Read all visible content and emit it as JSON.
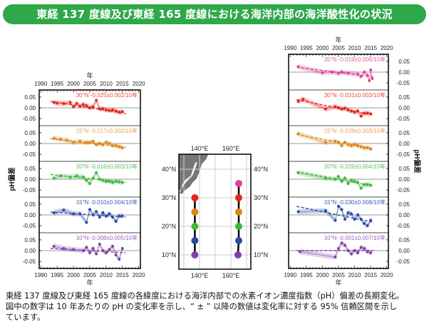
{
  "title": "東経 137 度線及び東経 165 度線における海洋内部の海洋酸性化の状況",
  "caption": [
    "東経 137 度線及び東経 165 度線の各緯度における海洋内部での水素イオン濃度指数（pH）偏差の長期変化。",
    "図中の数字は 10 年あたりの pH の変化率を示し、“ ± ” 以降の数値は変化率に対する 95% 信頼区間を示し",
    "ています。"
  ],
  "chart_data": [
    {
      "type": "line",
      "xlabel": "年",
      "ylabel": "pH偏差",
      "xlim": [
        1989.5,
        2020.5
      ],
      "ylim": [
        -0.083,
        0.083
      ],
      "xticks": [
        "1990",
        "1995",
        "2000",
        "2005",
        "2010",
        "2015",
        "2020"
      ],
      "yticks": [
        "0.05",
        "0.00",
        "-0.05"
      ],
      "grid": false,
      "panels": [
        {
          "label": "30°N -0.025±0.002/10年",
          "latitude": 30,
          "color": "#e8241c",
          "label_color": "#ef4a3a",
          "trend": [
            [
              1993,
              0.03
            ],
            [
              2016,
              -0.027
            ]
          ],
          "points": [
            [
              1994,
              0.025
            ],
            [
              1995,
              0.022
            ],
            [
              1997,
              0.02
            ],
            [
              1999,
              0.025
            ],
            [
              2000,
              0.005
            ],
            [
              2001,
              0.02
            ],
            [
              2002,
              0.008
            ],
            [
              2003,
              0.015
            ],
            [
              2004,
              0.01
            ],
            [
              2005,
              0.0
            ],
            [
              2006,
              0.005
            ],
            [
              2007,
              0.035
            ],
            [
              2008,
              -0.005
            ],
            [
              2009,
              -0.005
            ],
            [
              2010,
              -0.01
            ],
            [
              2011,
              -0.012
            ],
            [
              2012,
              -0.01
            ],
            [
              2013,
              -0.015
            ],
            [
              2014,
              -0.02
            ],
            [
              2015,
              -0.018
            ]
          ]
        },
        {
          "label": "25°N -0.017±0.002/10年",
          "latitude": 25,
          "color": "#dd8613",
          "label_color": "#e8a050",
          "trend": [
            [
              1993,
              0.022
            ],
            [
              2016,
              -0.018
            ]
          ],
          "points": [
            [
              1994,
              0.025
            ],
            [
              1996,
              0.02
            ],
            [
              1998,
              0.015
            ],
            [
              2000,
              0.005
            ],
            [
              2002,
              0.01
            ],
            [
              2004,
              0.005
            ],
            [
              2005,
              0.005
            ],
            [
              2006,
              0.01
            ],
            [
              2007,
              -0.005
            ],
            [
              2008,
              0.0
            ],
            [
              2009,
              -0.005
            ],
            [
              2010,
              0.005
            ],
            [
              2011,
              0.0
            ],
            [
              2012,
              -0.01
            ],
            [
              2013,
              -0.01
            ],
            [
              2014,
              -0.015
            ],
            [
              2015,
              -0.02
            ]
          ]
        },
        {
          "label": "20°N -0.016±0.003/10年",
          "latitude": 20,
          "color": "#3cb83c",
          "label_color": "#5cc05c",
          "trend": [
            [
              1993,
              0.022
            ],
            [
              2016,
              -0.015
            ]
          ],
          "points": [
            [
              1994,
              0.005
            ],
            [
              1996,
              0.015
            ],
            [
              1999,
              0.01
            ],
            [
              2001,
              0.015
            ],
            [
              2003,
              0.01
            ],
            [
              2004,
              -0.005
            ],
            [
              2005,
              -0.02
            ],
            [
              2006,
              0.005
            ],
            [
              2007,
              0.03
            ],
            [
              2008,
              0.0
            ],
            [
              2009,
              -0.005
            ],
            [
              2010,
              -0.01
            ],
            [
              2011,
              -0.01
            ],
            [
              2012,
              -0.015
            ],
            [
              2013,
              -0.01
            ],
            [
              2014,
              -0.012
            ],
            [
              2015,
              -0.015
            ]
          ]
        },
        {
          "label": "15°N -0.010±0.004/10年",
          "latitude": 15,
          "color": "#2a4aa8",
          "label_color": "#3a5ab8",
          "trend": [
            [
              1993,
              0.013
            ],
            [
              2016,
              -0.01
            ]
          ],
          "points": [
            [
              1994,
              0.01
            ],
            [
              1997,
              0.022
            ],
            [
              2000,
              0.005
            ],
            [
              2002,
              0.005
            ],
            [
              2004,
              -0.035
            ],
            [
              2005,
              0.025
            ],
            [
              2006,
              0.0
            ],
            [
              2007,
              0.015
            ],
            [
              2008,
              -0.01
            ],
            [
              2009,
              0.01
            ],
            [
              2010,
              -0.005
            ],
            [
              2011,
              0.005
            ],
            [
              2012,
              -0.01
            ],
            [
              2013,
              -0.03
            ],
            [
              2014,
              -0.005
            ],
            [
              2015,
              -0.005
            ]
          ]
        },
        {
          "label": "10°N -0.008±0.005/10年",
          "latitude": 10,
          "color": "#8040a8",
          "label_color": "#9a60c0",
          "trend": [
            [
              1993,
              0.01
            ],
            [
              2016,
              -0.01
            ]
          ],
          "points": [
            [
              1994,
              0.02
            ],
            [
              1997,
              0.01
            ],
            [
              2000,
              0.005
            ],
            [
              2003,
              0.0
            ],
            [
              2004,
              0.015
            ],
            [
              2005,
              -0.01
            ],
            [
              2006,
              0.01
            ],
            [
              2007,
              -0.015
            ],
            [
              2008,
              0.03
            ],
            [
              2009,
              0.0
            ],
            [
              2010,
              -0.01
            ],
            [
              2011,
              0.005
            ],
            [
              2012,
              0.02
            ],
            [
              2013,
              -0.02
            ],
            [
              2014,
              -0.04
            ],
            [
              2015,
              0.01
            ]
          ]
        }
      ]
    },
    {
      "type": "line",
      "xlabel": "年",
      "ylabel": "pH偏差",
      "xlim": [
        1989.5,
        2020.5
      ],
      "ylim": [
        -0.083,
        0.083
      ],
      "xticks": [
        "1990",
        "1995",
        "2000",
        "2005",
        "2010",
        "2015",
        "2020"
      ],
      "yticks": [
        "0.05",
        "0.00",
        "-0.05"
      ],
      "grid": false,
      "panels": [
        {
          "label": "35°N -0.019±0.006/10年",
          "latitude": 35,
          "color": "#e0409a",
          "label_color": "#e060a8",
          "trend": [
            [
              1992,
              0.023
            ],
            [
              2016,
              -0.022
            ]
          ],
          "points": [
            [
              1992.5,
              0.025
            ],
            [
              2000,
              -0.002
            ],
            [
              2003,
              0.0
            ],
            [
              2005,
              -0.005
            ],
            [
              2006,
              0.0
            ],
            [
              2008,
              -0.005
            ],
            [
              2011,
              -0.01
            ],
            [
              2012,
              -0.02
            ],
            [
              2013,
              0.0
            ],
            [
              2014,
              -0.015
            ],
            [
              2014.6,
              -0.04
            ],
            [
              2015,
              0.01
            ],
            [
              2015.5,
              -0.03
            ]
          ]
        },
        {
          "label": "30°N -0.031±0.003/10年",
          "latitude": 30,
          "color": "#e8241c",
          "label_color": "#ef4a3a",
          "trend": [
            [
              1992,
              0.038
            ],
            [
              2016,
              -0.035
            ]
          ],
          "points": [
            [
              1992.5,
              0.03
            ],
            [
              1994,
              0.04
            ],
            [
              2001,
              -0.005
            ],
            [
              2004,
              0.005
            ],
            [
              2005,
              0.0
            ],
            [
              2006,
              -0.005
            ],
            [
              2007,
              -0.002
            ],
            [
              2008,
              -0.01
            ],
            [
              2009,
              -0.015
            ],
            [
              2010,
              -0.02
            ],
            [
              2011,
              -0.015
            ],
            [
              2012,
              -0.038
            ],
            [
              2013,
              -0.025
            ],
            [
              2014,
              -0.025
            ],
            [
              2015,
              -0.028
            ]
          ]
        },
        {
          "label": "25°N -0.028±0.003/10年",
          "latitude": 25,
          "color": "#dd8613",
          "label_color": "#e8a050",
          "trend": [
            [
              1992,
              0.042
            ],
            [
              2016,
              -0.025
            ]
          ],
          "points": [
            [
              1992.5,
              0.045
            ],
            [
              2001,
              0.005
            ],
            [
              2004,
              0.01
            ],
            [
              2005,
              0.005
            ],
            [
              2006,
              -0.01
            ],
            [
              2007,
              0.005
            ],
            [
              2008,
              -0.005
            ],
            [
              2009,
              -0.01
            ],
            [
              2010,
              -0.005
            ],
            [
              2011,
              -0.01
            ],
            [
              2012,
              -0.015
            ],
            [
              2013,
              -0.02
            ],
            [
              2014,
              -0.02
            ],
            [
              2015,
              -0.025
            ]
          ]
        },
        {
          "label": "20°N -0.028±0.004/10年",
          "latitude": 20,
          "color": "#3cb83c",
          "label_color": "#5cc05c",
          "trend": [
            [
              1992,
              0.035
            ],
            [
              2016,
              -0.032
            ]
          ],
          "points": [
            [
              1992.5,
              0.03
            ],
            [
              2001,
              0.005
            ],
            [
              2004,
              0.0
            ],
            [
              2005,
              0.012
            ],
            [
              2006,
              -0.01
            ],
            [
              2007,
              0.005
            ],
            [
              2008,
              -0.02
            ],
            [
              2009,
              -0.005
            ],
            [
              2010,
              -0.01
            ],
            [
              2011,
              -0.015
            ],
            [
              2012,
              -0.042
            ],
            [
              2013,
              -0.025
            ],
            [
              2014,
              -0.025
            ],
            [
              2015,
              -0.028
            ]
          ]
        },
        {
          "label": "15°N -0.030±0.008/10年",
          "latitude": 15,
          "color": "#2a4aa8",
          "label_color": "#3a5ab8",
          "trend": [
            [
              1992,
              0.04
            ],
            [
              2016,
              -0.035
            ]
          ],
          "points": [
            [
              1992.5,
              0.015
            ],
            [
              2001,
              0.02
            ],
            [
              2004,
              -0.025
            ],
            [
              2005,
              0.04
            ],
            [
              2006,
              0.025
            ],
            [
              2007,
              -0.02
            ],
            [
              2008,
              0.01
            ],
            [
              2009,
              0.005
            ],
            [
              2010,
              -0.02
            ],
            [
              2011,
              0.0
            ],
            [
              2012,
              -0.02
            ],
            [
              2013,
              -0.04
            ],
            [
              2014,
              -0.05
            ],
            [
              2015,
              -0.025
            ]
          ]
        },
        {
          "label": "10°N -0.001±0.007/10年",
          "latitude": 10,
          "color": "#8040a8",
          "label_color": "#9a60c0",
          "trend": [
            [
              1992,
              0.0
            ],
            [
              2016,
              0.0
            ]
          ],
          "points": [
            [
              1993,
              -0.005
            ],
            [
              2004,
              -0.03
            ],
            [
              2005,
              0.01
            ],
            [
              2006,
              0.035
            ],
            [
              2007,
              0.025
            ],
            [
              2008,
              0.0
            ],
            [
              2009,
              -0.015
            ],
            [
              2010,
              0.0
            ],
            [
              2011,
              -0.01
            ],
            [
              2012,
              0.015
            ],
            [
              2013,
              0.01
            ],
            [
              2014,
              -0.005
            ],
            [
              2015,
              -0.01
            ]
          ]
        }
      ]
    }
  ],
  "map": {
    "lon_labels": [
      "140°E",
      "160°E"
    ],
    "lat_labels": [
      "40°N",
      "30°N",
      "20°N",
      "10°N"
    ],
    "lines": [
      {
        "longitude": 137,
        "stations": [
          [
            137,
            30,
            "#e8241c"
          ],
          [
            137,
            25,
            "#dd8613"
          ],
          [
            137,
            20,
            "#3cb83c"
          ],
          [
            137,
            15,
            "#2a4aa8"
          ],
          [
            137,
            10,
            "#8040a8"
          ]
        ]
      },
      {
        "longitude": 165,
        "stations": [
          [
            165,
            35,
            "#e0409a"
          ],
          [
            165,
            30,
            "#e8241c"
          ],
          [
            165,
            25,
            "#dd8613"
          ],
          [
            165,
            20,
            "#3cb83c"
          ],
          [
            165,
            15,
            "#2a4aa8"
          ],
          [
            164.5,
            10,
            "#8040a8"
          ]
        ]
      }
    ]
  },
  "colors": {
    "banner": "#2fa84a"
  }
}
